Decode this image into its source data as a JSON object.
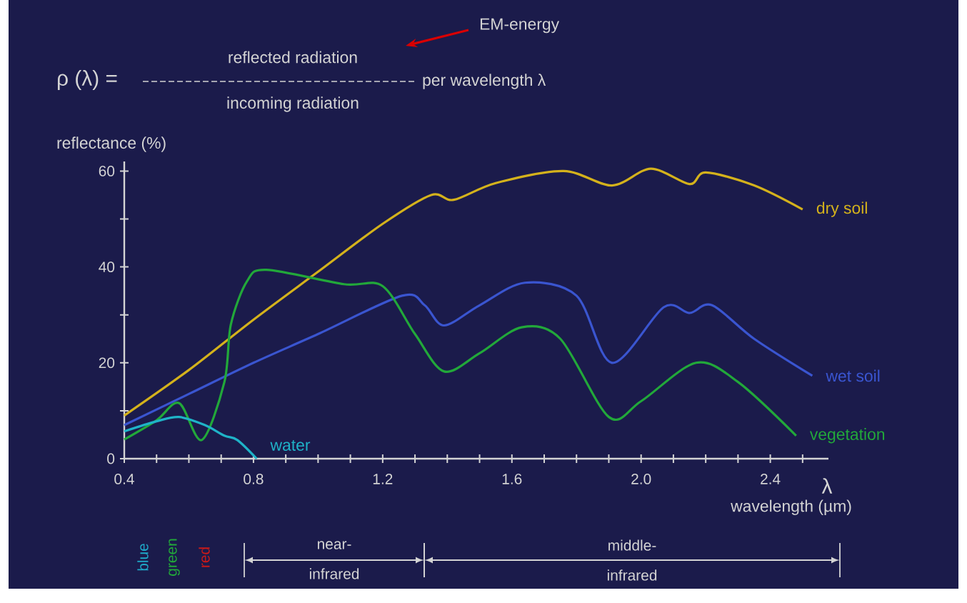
{
  "chart_data": {
    "type": "line",
    "xlabel": "wavelength (µm)",
    "ylabel": "reflectance (%)",
    "annotations": [
      "EM-energy",
      "ρ (λ) =",
      "reflected radiation",
      "incoming radiation",
      "per wavelength λ",
      "λ",
      "blue",
      "green",
      "red",
      "near-infrared",
      "middle-infrared"
    ],
    "xlim": [
      0.4,
      2.58
    ],
    "ylim": [
      0,
      62
    ],
    "xticks": [
      {
        "value": 0.4,
        "label": "0.4"
      },
      {
        "value": 0.5,
        "label": null
      },
      {
        "value": 0.6,
        "label": null
      },
      {
        "value": 0.7,
        "label": null
      },
      {
        "value": 0.8,
        "label": "0.8"
      },
      {
        "value": 0.9,
        "label": null
      },
      {
        "value": 1.0,
        "label": null
      },
      {
        "value": 1.1,
        "label": null
      },
      {
        "value": 1.2,
        "label": "1.2"
      },
      {
        "value": 1.3,
        "label": null
      },
      {
        "value": 1.4,
        "label": null
      },
      {
        "value": 1.5,
        "label": null
      },
      {
        "value": 1.6,
        "label": "1.6"
      },
      {
        "value": 1.7,
        "label": null
      },
      {
        "value": 1.8,
        "label": null
      },
      {
        "value": 1.9,
        "label": null
      },
      {
        "value": 2.0,
        "label": "2.0"
      },
      {
        "value": 2.1,
        "label": null
      },
      {
        "value": 2.2,
        "label": null
      },
      {
        "value": 2.3,
        "label": null
      },
      {
        "value": 2.4,
        "label": "2.4"
      },
      {
        "value": 2.5,
        "label": null
      }
    ],
    "yticks": [
      0,
      {
        "value": 10,
        "label": null
      },
      20,
      {
        "value": 30,
        "label": null
      },
      40,
      {
        "value": 50,
        "label": null
      },
      60
    ],
    "grid": false,
    "series": [
      {
        "name": "dry soil",
        "color": "#d4b21c",
        "x": [
          0.4,
          0.6,
          0.8,
          1.0,
          1.2,
          1.35,
          1.42,
          1.55,
          1.76,
          1.91,
          2.03,
          2.15,
          2.2,
          2.35,
          2.5
        ],
        "values": [
          9,
          18.5,
          29,
          39,
          49,
          55,
          54,
          57.5,
          60,
          57,
          60.5,
          57.3,
          59.7,
          57,
          52
        ]
      },
      {
        "name": "wet soil",
        "color": "#3a55d0",
        "x": [
          0.4,
          0.6,
          0.8,
          1.0,
          1.26,
          1.33,
          1.39,
          1.5,
          1.64,
          1.8,
          1.91,
          2.07,
          2.15,
          2.22,
          2.35,
          2.53
        ],
        "values": [
          7,
          13.5,
          20,
          26,
          34,
          32,
          27.8,
          32,
          36.7,
          34,
          20,
          31.6,
          30.4,
          32,
          25,
          17.3
        ]
      },
      {
        "name": "vegetation",
        "color": "#22a83a",
        "x": [
          0.4,
          0.5,
          0.57,
          0.64,
          0.71,
          0.73,
          0.78,
          0.84,
          1.08,
          1.2,
          1.3,
          1.39,
          1.5,
          1.63,
          1.75,
          1.9,
          2.0,
          2.17,
          2.3,
          2.48
        ],
        "values": [
          4,
          8,
          11.6,
          3.9,
          16,
          28,
          37,
          39.4,
          36.4,
          36,
          26,
          18.2,
          22,
          27.4,
          25,
          8.7,
          12,
          20,
          16,
          4.8
        ]
      },
      {
        "name": "water",
        "color": "#1fb3c8",
        "x": [
          0.4,
          0.5,
          0.57,
          0.65,
          0.71,
          0.75,
          0.81
        ],
        "values": [
          5.7,
          7.8,
          8.7,
          7,
          4.8,
          3.9,
          0
        ]
      }
    ]
  }
}
